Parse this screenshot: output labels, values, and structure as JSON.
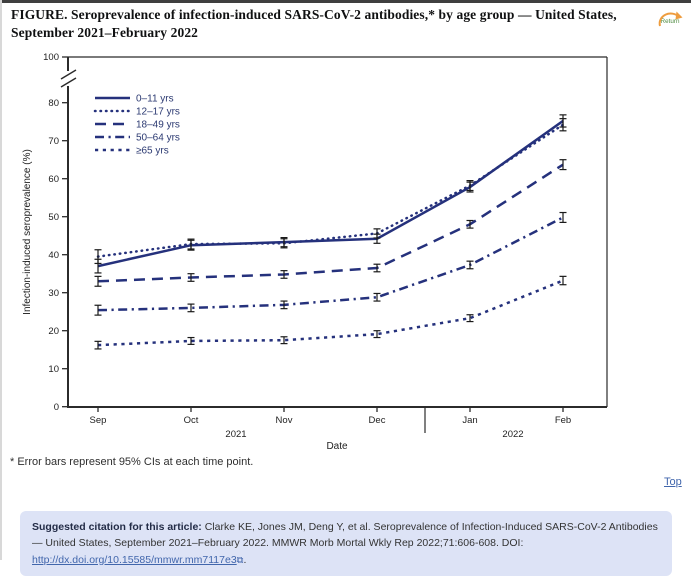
{
  "page": {
    "title": "FIGURE. Seroprevalence of infection-induced SARS-CoV-2 antibodies,* by age group — United States, September 2021–February 2022",
    "footnote": "* Error bars represent 95% CIs at each time point.",
    "top_link": "Top",
    "return_button": "Return"
  },
  "citation": {
    "label": "Suggested citation for this article:",
    "body": " Clarke KE, Jones JM, Deng Y, et al. Seroprevalence of Infection-Induced SARS-CoV-2 Antibodies — United States, September 2021–February 2022. MMWR Morb Mortal Wkly Rep 2022;71:606-608. DOI: ",
    "link_text": "http://dx.doi.org/10.15585/mmwr.mm7117e3",
    "external_icon": "⧉",
    "suffix": "."
  },
  "chart_data": {
    "type": "line",
    "xlabel": "Date",
    "ylabel": "Infection-induced seroprevalence (%)",
    "x_categories": [
      "Sep",
      "Oct",
      "Nov",
      "Dec",
      "Jan",
      "Feb"
    ],
    "year_labels": [
      "2021",
      "2022"
    ],
    "ylim": [
      0,
      100
    ],
    "yticks": [
      0,
      10,
      20,
      30,
      40,
      50,
      60,
      70,
      80,
      100
    ],
    "axis_break_between": [
      80,
      100
    ],
    "grid": false,
    "legend_position": "upper-left-inside",
    "line_color": "#25317c",
    "error_bar_color": "#1a1a1a",
    "series": [
      {
        "name": "0–11 yrs",
        "dash": "solid",
        "values": [
          37.0,
          42.5,
          43.3,
          44.2,
          57.8,
          75.2
        ],
        "ci": [
          1.8,
          1.3,
          1.2,
          1.2,
          1.3,
          1.6
        ]
      },
      {
        "name": "12–17 yrs",
        "dash": "dotted",
        "values": [
          39.5,
          42.8,
          43.0,
          45.6,
          58.2,
          74.2
        ],
        "ci": [
          1.8,
          1.3,
          1.2,
          1.2,
          1.3,
          1.6
        ]
      },
      {
        "name": "18–49 yrs",
        "dash": "dashed",
        "values": [
          33.0,
          34.0,
          34.8,
          36.5,
          48.0,
          63.7
        ],
        "ci": [
          1.3,
          1.0,
          1.0,
          1.0,
          1.0,
          1.3
        ]
      },
      {
        "name": "50–64 yrs",
        "dash": "dash-dot",
        "values": [
          25.4,
          26.0,
          26.8,
          28.8,
          37.3,
          49.8
        ],
        "ci": [
          1.3,
          1.0,
          1.0,
          1.0,
          1.0,
          1.3
        ]
      },
      {
        "name": "≥65 yrs",
        "dash": "short-dash",
        "values": [
          16.2,
          17.3,
          17.5,
          19.1,
          23.3,
          33.2
        ],
        "ci": [
          1.0,
          0.9,
          0.9,
          0.9,
          0.9,
          1.1
        ]
      }
    ]
  }
}
